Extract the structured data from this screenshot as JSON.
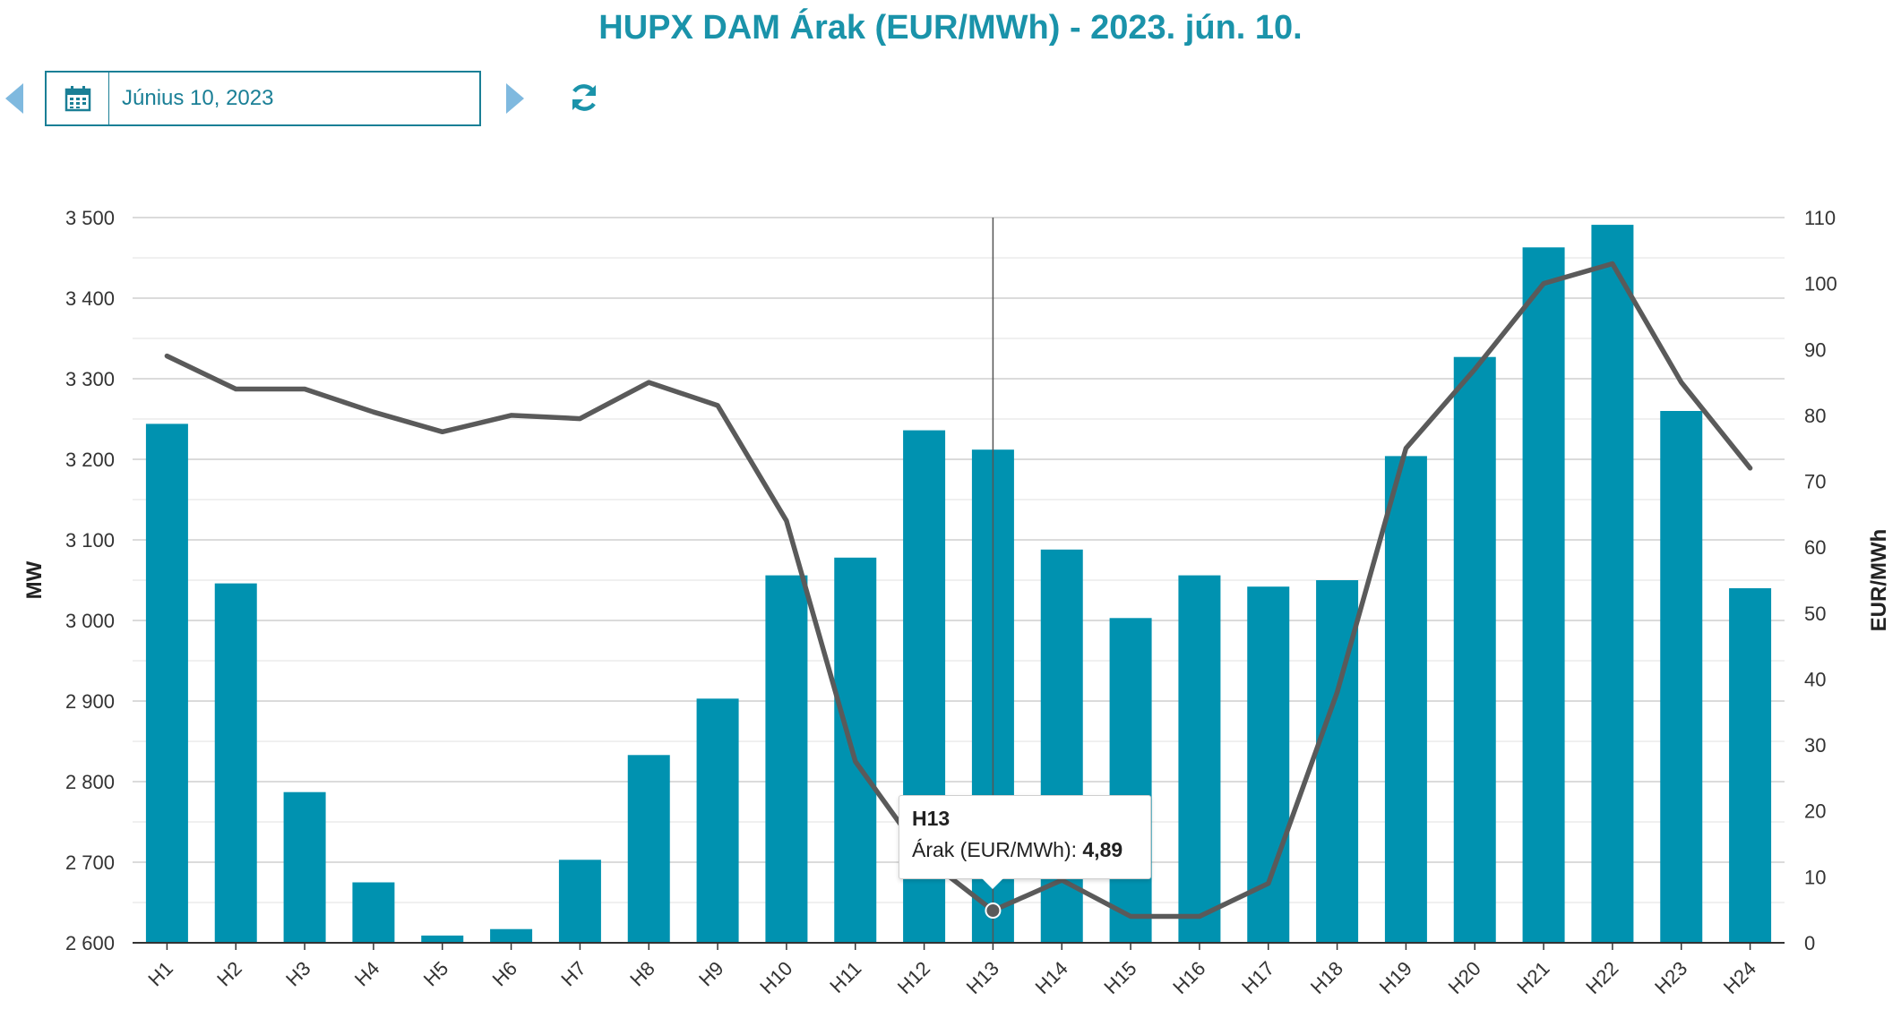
{
  "title": "HUPX DAM Árak (EUR/MWh) - 2023. jún. 10.",
  "date_picker": {
    "value": "Június 10, 2023"
  },
  "icons": {
    "prev": "chevron-left-icon",
    "next": "chevron-right-icon",
    "calendar": "calendar-icon",
    "refresh": "refresh-icon"
  },
  "colors": {
    "bar": "#0092b0",
    "line": "#5a5a5a",
    "title": "#1a93aa",
    "arrow": "#7fb9df"
  },
  "tooltip": {
    "category": "H13",
    "label": "Árak (EUR/MWh):",
    "value": "4,89"
  },
  "chart_data": {
    "type": "bar",
    "categories": [
      "H1",
      "H2",
      "H3",
      "H4",
      "H5",
      "H6",
      "H7",
      "H8",
      "H9",
      "H10",
      "H11",
      "H12",
      "H13",
      "H14",
      "H15",
      "H16",
      "H17",
      "H18",
      "H19",
      "H20",
      "H21",
      "H22",
      "H23",
      "H24"
    ],
    "series": [
      {
        "axis": "left",
        "type": "bar",
        "values": [
          3244,
          3046,
          2787,
          2675,
          2609,
          2617,
          2703,
          2833,
          2903,
          3056,
          3078,
          3236,
          3212,
          3088,
          3003,
          3056,
          3042,
          3050,
          3204,
          3327,
          3463,
          3491,
          3260,
          3040
        ]
      },
      {
        "axis": "right",
        "type": "line",
        "values": [
          89,
          84,
          84,
          80.5,
          77.5,
          80,
          79.5,
          85,
          81.5,
          64,
          27.5,
          13,
          4.89,
          9.5,
          4,
          4,
          9,
          38,
          75,
          87,
          100,
          103,
          85,
          72
        ]
      }
    ],
    "ylabel": "MW",
    "ylabel_right": "EUR/MWh",
    "ylim": [
      2600,
      3500
    ],
    "ylim_right": [
      0,
      110
    ],
    "yticks": [
      "2 600",
      "2 700",
      "2 800",
      "2 900",
      "3 000",
      "3 100",
      "3 200",
      "3 300",
      "3 400",
      "3 500"
    ],
    "yticks_right": [
      "0",
      "10",
      "20",
      "30",
      "40",
      "50",
      "60",
      "70",
      "80",
      "90",
      "100",
      "110"
    ],
    "grid": true,
    "highlight": "H13"
  }
}
